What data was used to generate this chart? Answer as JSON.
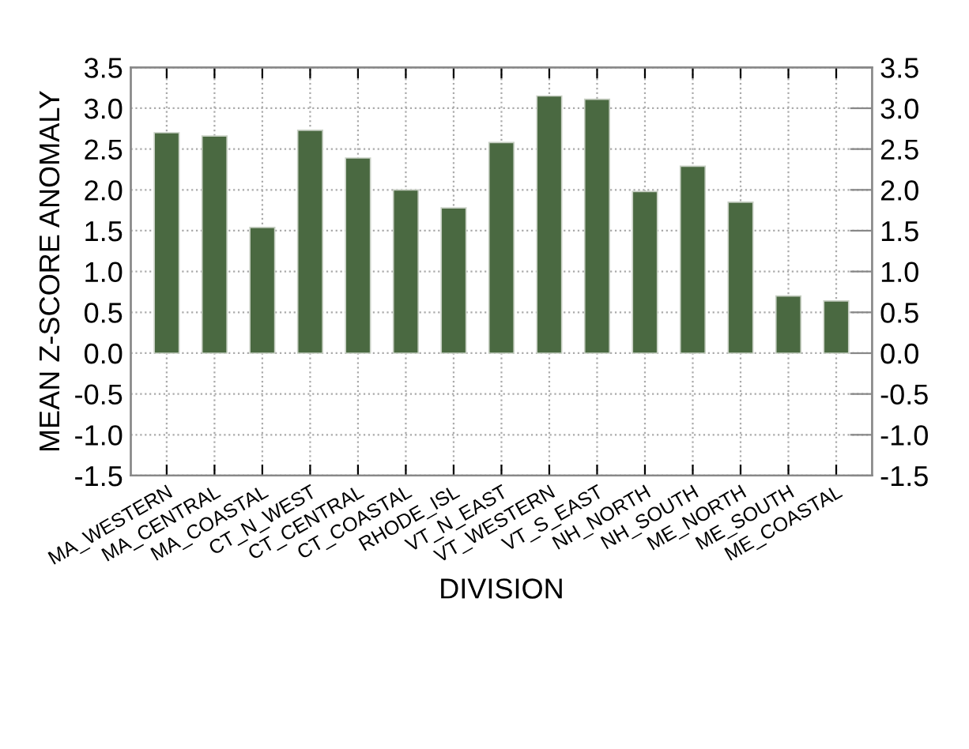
{
  "chart_data": {
    "type": "bar",
    "xlabel": "DIVISION",
    "ylabel": "MEAN Z-SCORE ANOMALY",
    "categories": [
      "MA_WESTERN",
      "MA_CENTRAL",
      "MA_COASTAL",
      "CT_N_WEST",
      "CT_CENTRAL",
      "CT_COASTAL",
      "RHODE_ISL",
      "VT_N_EAST",
      "VT_WESTERN",
      "VT_S_EAST",
      "NH_NORTH",
      "NH_SOUTH",
      "ME_NORTH",
      "ME_SOUTH",
      "ME_COASTAL"
    ],
    "values": [
      2.7,
      2.66,
      1.54,
      2.73,
      2.39,
      2.0,
      1.78,
      2.58,
      3.15,
      3.11,
      1.98,
      2.29,
      1.85,
      0.7,
      0.64
    ],
    "color": "#4a6941",
    "ylim": [
      -1.5,
      3.5
    ],
    "yticks": [
      {
        "value": -1.5,
        "label": "-1.5"
      },
      {
        "value": -1.0,
        "label": "-1.0"
      },
      {
        "value": -0.5,
        "label": "-0.5"
      },
      {
        "value": 0.0,
        "label": "0.0"
      },
      {
        "value": 0.5,
        "label": "0.5"
      },
      {
        "value": 1.0,
        "label": "1.0"
      },
      {
        "value": 1.5,
        "label": "1.5"
      },
      {
        "value": 2.0,
        "label": "2.0"
      },
      {
        "value": 2.5,
        "label": "2.5"
      },
      {
        "value": 3.0,
        "label": "3.0"
      },
      {
        "value": 3.5,
        "label": "3.5"
      }
    ],
    "y2lim": [
      -1.5,
      3.5
    ],
    "y2ticks": [
      {
        "value": -1.5,
        "label": "-1.5"
      },
      {
        "value": -1.0,
        "label": "-1.0"
      },
      {
        "value": -0.5,
        "label": "-0.5"
      },
      {
        "value": 0.0,
        "label": "0.0"
      },
      {
        "value": 0.5,
        "label": "0.5"
      },
      {
        "value": 1.0,
        "label": "1.0"
      },
      {
        "value": 1.5,
        "label": "1.5"
      },
      {
        "value": 2.0,
        "label": "2.0"
      },
      {
        "value": 2.5,
        "label": "2.5"
      },
      {
        "value": 3.0,
        "label": "3.0"
      },
      {
        "value": 3.5,
        "label": "3.5"
      }
    ],
    "grid": true
  }
}
